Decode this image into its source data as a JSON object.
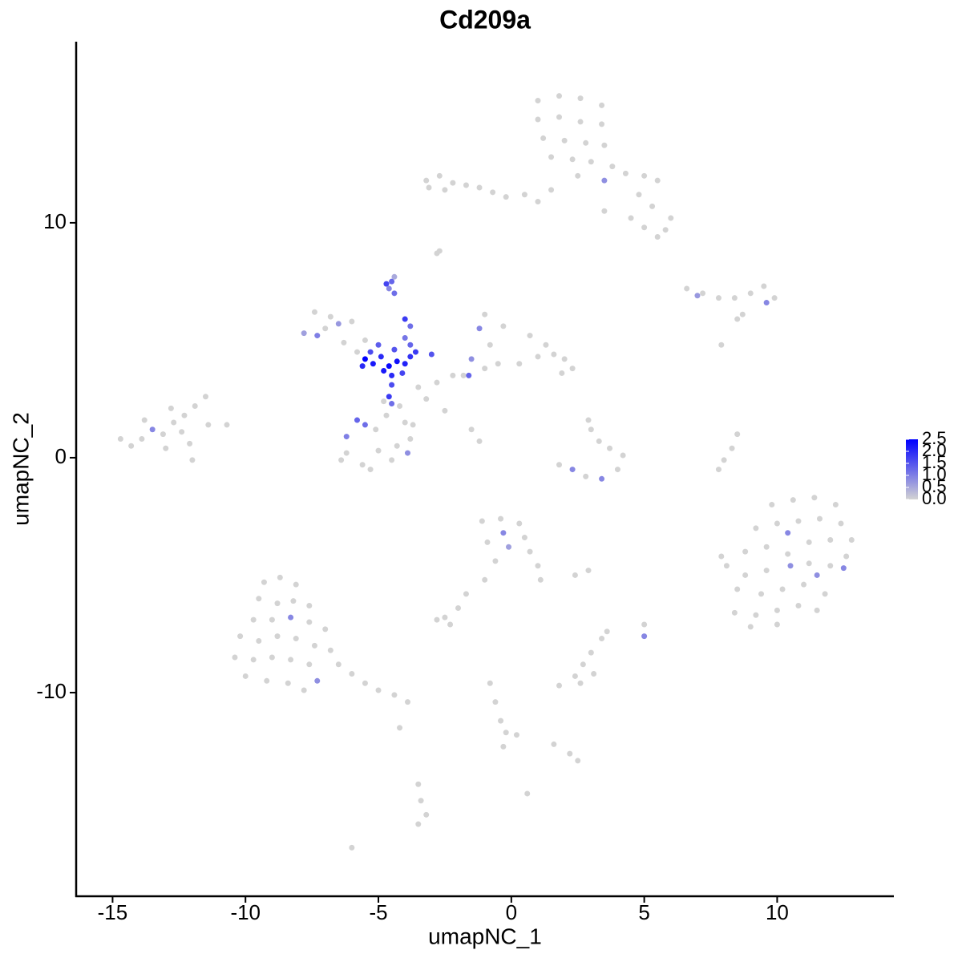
{
  "chart_data": {
    "type": "scatter",
    "title": "Cd209a",
    "x_label": "umapNC_1",
    "y_label": "umapNC_2",
    "xlim": [
      -16.37,
      14.39
    ],
    "ylim": [
      -18.67,
      17.71
    ],
    "xticks": [
      -15,
      -10,
      -5,
      0,
      5,
      10
    ],
    "yticks": [
      -10,
      0,
      10
    ],
    "color_scale": {
      "low": "#D3D3D3",
      "high": "#0000FF",
      "lim": [
        0,
        2.5
      ],
      "ticks": [
        {
          "value": 0,
          "label": "0.0"
        },
        {
          "value": 0.5,
          "label": "0.5"
        },
        {
          "value": 1,
          "label": "1.0"
        },
        {
          "value": 1.5,
          "label": "1.5"
        },
        {
          "value": 2,
          "label": "2.0"
        },
        2.5
      ]
    },
    "x": [
      1,
      1.8,
      2.6,
      3.4,
      1,
      1.8,
      2.6,
      3.4,
      1.2,
      2,
      2.8,
      3.5,
      1.5,
      2.3,
      3,
      3.8,
      2.5,
      4.3,
      5,
      5.5,
      4.8,
      5.3,
      4.5,
      5,
      5.8,
      5.5,
      6,
      3.5,
      3.5,
      -0.2,
      0.5,
      1.5,
      1,
      -3.2,
      -2.7,
      -2.2,
      -1.7,
      -1.2,
      -0.7,
      -3.1,
      -2.5,
      -2.8,
      -2.7,
      6.6,
      7.2,
      7.8,
      8.4,
      9,
      9.5,
      9.9,
      8.7,
      8.5,
      9.6,
      7,
      7.9,
      -7.4,
      -6.8,
      -7,
      -6,
      -6.3,
      -5.5,
      -5.8,
      -7.8,
      -6.5,
      -7.3,
      -3.5,
      -2.8,
      -2.2,
      -1,
      -0.5,
      0.3,
      1,
      1.6,
      2,
      2.3,
      1.9,
      1.3,
      0.7,
      -0.3,
      -1,
      -0.8,
      -1.8,
      -3.2,
      -2.5,
      -1.5,
      -1.2,
      -1.6,
      -1.2,
      -1.5,
      -6.2,
      -5.6,
      -5,
      -4.3,
      -3.8,
      -4,
      -4.7,
      -5.1,
      -4.5,
      -5.3,
      -4.8,
      -4.2,
      -3.7,
      -6.4,
      -6.2,
      -5.8,
      -5.5,
      -3.9,
      -14.7,
      -14.3,
      -13.9,
      -13.1,
      -12.7,
      -12.3,
      -11.9,
      -11.5,
      -12.4,
      -13,
      -12.1,
      -11.4,
      -10.7,
      -13.8,
      -12.8,
      -12,
      -13.5,
      3,
      3.3,
      3.7,
      4.2,
      4,
      2.8,
      1.8,
      2.9,
      8.5,
      8.3,
      8,
      7.8,
      3.4,
      2.3,
      9.8,
      10.6,
      11.4,
      12.2,
      9.2,
      10,
      10.8,
      11.6,
      12.4,
      12.8,
      8.8,
      9.6,
      11.2,
      12,
      12.6,
      8.1,
      8.8,
      9.6,
      10.4,
      11.2,
      12,
      8.5,
      9.4,
      10.2,
      11,
      11.8,
      8.4,
      9.2,
      10,
      10.8,
      11.5,
      9,
      10,
      7.9,
      10.4,
      10.5,
      11.5,
      12.5,
      -1.1,
      -0.4,
      0.3,
      0.5,
      -0.9,
      0.7,
      1,
      1.1,
      -0.6,
      -1,
      -1.7,
      -2,
      -2.5,
      -2.8,
      -2.3,
      2.4,
      2.9,
      -0.3,
      -0.1,
      -9.3,
      -8.7,
      -8.1,
      -9.5,
      -8.8,
      -8.2,
      -7.6,
      -9.7,
      -9,
      -7.6,
      -7,
      -10.2,
      -9.5,
      -8.8,
      -8.1,
      -7.4,
      -6.8,
      -10.4,
      -9.7,
      -9,
      -8.3,
      -7.6,
      -6.5,
      -6,
      -5.5,
      -5,
      -4.4,
      -3.9,
      -10,
      -9.2,
      -8.4,
      -7.8,
      -4.2,
      -8.3,
      -7.3,
      3.6,
      3.4,
      5,
      3,
      2.4,
      1.8,
      2.6,
      3.1,
      2.7,
      -0.8,
      -0.6,
      -0.4,
      -0.2,
      -0.3,
      0.2,
      1.6,
      2.2,
      2.5,
      -3.5,
      -3.4,
      -3.2,
      -3.5,
      -6,
      0.6,
      5,
      -5.5,
      -5.2,
      -4.9,
      -4.6,
      -4.3,
      -4,
      -3.8,
      -3.6,
      -4.8,
      -5.3,
      -5,
      -4.4,
      -4.5,
      -4.5,
      -4.6,
      -4.5,
      -4,
      -4,
      -3.8,
      -3.8,
      -3,
      -4.7,
      -4.5,
      -4.4,
      -4.6,
      -4.4,
      -5.6,
      -4.1
    ],
    "y": [
      15.2,
      15.4,
      15.3,
      15,
      14.4,
      14.5,
      14.3,
      14.2,
      13.6,
      13.5,
      13.4,
      13.3,
      12.8,
      12.7,
      12.6,
      12.4,
      12,
      12.1,
      12,
      11.8,
      11.2,
      10.7,
      10.2,
      9.8,
      9.7,
      9.4,
      10.2,
      10.5,
      11.8,
      11.1,
      11.2,
      11.4,
      10.9,
      11.8,
      12,
      11.7,
      11.6,
      11.5,
      11.3,
      11.5,
      11.4,
      8.7,
      8.8,
      7.2,
      7,
      6.8,
      6.8,
      7,
      7.3,
      6.8,
      6.1,
      5.9,
      6.6,
      6.9,
      4.8,
      6.2,
      6,
      5.5,
      5.8,
      4.9,
      5,
      4.5,
      5.3,
      5.7,
      5.2,
      3,
      3.2,
      3.5,
      3.8,
      4,
      4,
      4.3,
      4.4,
      4.2,
      3.8,
      3.6,
      4.8,
      5.2,
      5.6,
      6.1,
      4.8,
      3.5,
      2.5,
      2,
      1.2,
      0.7,
      3.5,
      5.5,
      4.2,
      0.2,
      -0.3,
      0.3,
      0.5,
      0.8,
      1.5,
      1.8,
      1.2,
      -0.1,
      -0.5,
      2.4,
      2.2,
      1.4,
      -0.1,
      0.9,
      1.6,
      1.4,
      0.2,
      0.8,
      0.5,
      0.8,
      1,
      1.5,
      1.8,
      2.2,
      2.6,
      1.1,
      0.4,
      0.6,
      1.4,
      1.4,
      1.6,
      2.1,
      -0.1,
      1.2,
      1.2,
      0.7,
      0.4,
      0.1,
      -0.5,
      -0.8,
      -0.3,
      1.6,
      1,
      0.4,
      -0.1,
      -0.5,
      -0.9,
      -0.5,
      -2,
      -1.8,
      -1.7,
      -2,
      -3,
      -2.8,
      -2.7,
      -2.6,
      -2.8,
      -3.5,
      -4,
      -3.8,
      -3.6,
      -3.5,
      -4.2,
      -4.6,
      -5,
      -4.8,
      -4.1,
      -4.5,
      -4.6,
      -5.6,
      -5.8,
      -5.6,
      -5.4,
      -5.8,
      -6.6,
      -6.7,
      -6.5,
      -6.3,
      -6.5,
      -7.2,
      -7.1,
      -4.2,
      -3.2,
      -4.6,
      -5,
      -4.7,
      -2.7,
      -2.6,
      -2.8,
      -3.4,
      -3.6,
      -4,
      -4.6,
      -5.2,
      -4.4,
      -5.2,
      -5.8,
      -6.4,
      -6.8,
      -6.9,
      -7.1,
      -5,
      -4.8,
      -3.2,
      -3.8,
      -5.3,
      -5.1,
      -5.4,
      -6,
      -6.2,
      -6.1,
      -6.3,
      -6.9,
      -6.9,
      -7,
      -7.3,
      -7.6,
      -7.8,
      -7.6,
      -7.7,
      -8,
      -8.2,
      -8.5,
      -8.6,
      -8.5,
      -8.6,
      -8.8,
      -8.8,
      -9.2,
      -9.6,
      -9.9,
      -10.1,
      -10.4,
      -9.3,
      -9.5,
      -9.6,
      -9.9,
      -11.5,
      -6.8,
      -9.5,
      -7.4,
      -7.7,
      -7.1,
      -8.3,
      -9.3,
      -9.7,
      -9.6,
      -9.2,
      -8.8,
      -9.6,
      -10.4,
      -11.2,
      -11.7,
      -12.3,
      -11.8,
      -12.2,
      -12.6,
      -12.9,
      -13.9,
      -14.6,
      -15.2,
      -15.6,
      -16.6,
      -14.3,
      -7.6,
      4.2,
      4,
      4.3,
      3.9,
      4.1,
      4,
      4.3,
      4.5,
      3.7,
      4.5,
      4.8,
      4.6,
      3.5,
      3.1,
      2.6,
      2.3,
      5.1,
      5.9,
      5.6,
      4.8,
      4.4,
      7.4,
      7.5,
      7,
      7.2,
      7.7,
      3.9,
      3.6
    ],
    "values": [
      0,
      0,
      0,
      0,
      0,
      0,
      0,
      0,
      0,
      0,
      0,
      0,
      0,
      0,
      0,
      0,
      0,
      0,
      0,
      0,
      0,
      0,
      0,
      0,
      0,
      0,
      0,
      0,
      0.8,
      0,
      0,
      0,
      0,
      0,
      0,
      0,
      0,
      0,
      0,
      0,
      0,
      0,
      0,
      0,
      0,
      0,
      0,
      0,
      0,
      0,
      0,
      0,
      0.9,
      0.7,
      0,
      0,
      0,
      0,
      0,
      0,
      0,
      0,
      0.6,
      0.7,
      1,
      0,
      0,
      0,
      0,
      0,
      0,
      0,
      0,
      0,
      0,
      0,
      0,
      0,
      0,
      0,
      0,
      0,
      0,
      0,
      0,
      0,
      1.3,
      0.9,
      0.8,
      0,
      0,
      0,
      0,
      0,
      0,
      0,
      0,
      0,
      0,
      0,
      0,
      0,
      0,
      1,
      1.3,
      1.2,
      0.8,
      0,
      0,
      0,
      0,
      0,
      0,
      0,
      0,
      0,
      0,
      0,
      0,
      0,
      0,
      0,
      0,
      0.9,
      0,
      0,
      0,
      0,
      0,
      0,
      0,
      0,
      0,
      0,
      0,
      0,
      0.9,
      0.9,
      0,
      0,
      0,
      0,
      0,
      0,
      0,
      0,
      0,
      0,
      0,
      0,
      0,
      0,
      0,
      0,
      0,
      0,
      0,
      0,
      0,
      0,
      0,
      0,
      0,
      0,
      0,
      0,
      0,
      0,
      0,
      0,
      0,
      0,
      0.9,
      0.8,
      0.8,
      0.9,
      0,
      0,
      0,
      0,
      0,
      0,
      0,
      0,
      0,
      0,
      0,
      0,
      0,
      0,
      0,
      0,
      0,
      0.9,
      0.6,
      0,
      0,
      0,
      0,
      0,
      0,
      0,
      0,
      0,
      0,
      0,
      0,
      0,
      0,
      0,
      0,
      0,
      0,
      0,
      0,
      0,
      0,
      0,
      0,
      0,
      0,
      0,
      0,
      0,
      0,
      0,
      0,
      0,
      0.9,
      0.8,
      0,
      0,
      0,
      0,
      0,
      0,
      0,
      0,
      0,
      0,
      0,
      0,
      0,
      0,
      0,
      0,
      0,
      0,
      0,
      0,
      0,
      0,
      0,
      0,
      0.9,
      2.5,
      2.2,
      2,
      2.4,
      2.3,
      2.1,
      1.9,
      1.8,
      2.2,
      1.6,
      1.4,
      1.5,
      2,
      1.6,
      1.8,
      1.2,
      1.1,
      1.8,
      1.2,
      1.3,
      1.5,
      1.7,
      1.3,
      1.2,
      0.9,
      0.5,
      2,
      1.7
    ]
  }
}
